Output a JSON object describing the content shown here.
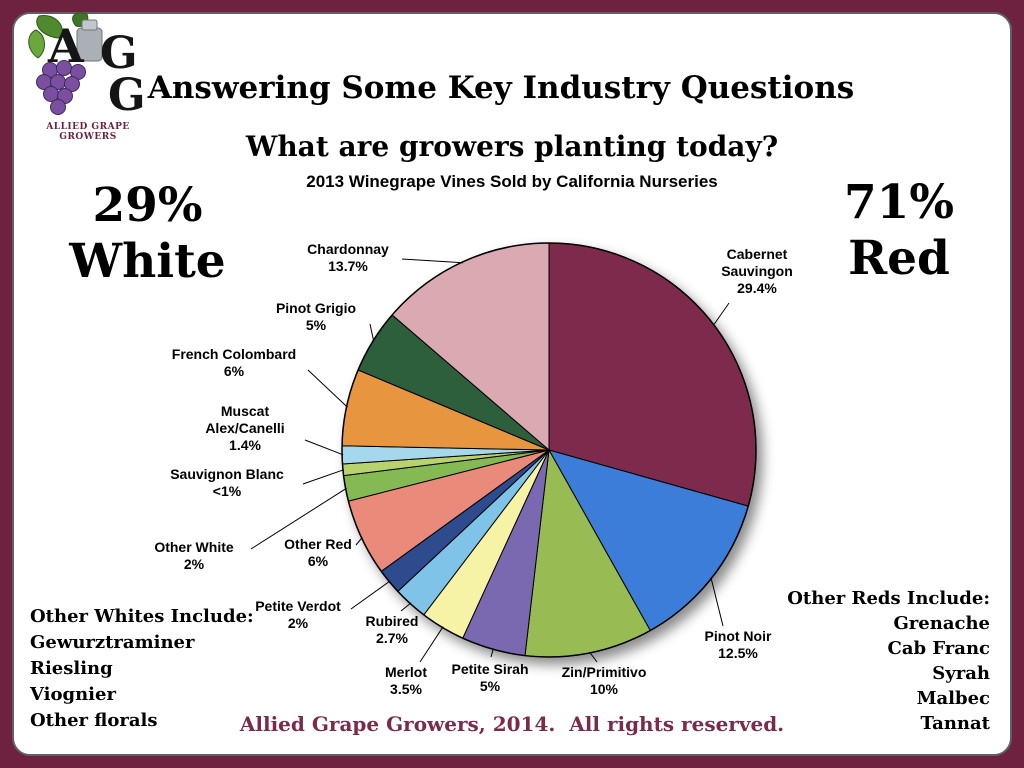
{
  "slide": {
    "title": "Answering Some Key Industry Questions",
    "subtitle": "What are growers planting today?",
    "footer": "Allied Grape Growers, 2014.  All rights reserved."
  },
  "logo": {
    "letters": [
      "A",
      "G",
      "G"
    ],
    "caption": "Allied Grape Growers"
  },
  "stats": {
    "white_pct": "29%",
    "white_label": "White",
    "red_pct": "71%",
    "red_label": "Red"
  },
  "chart_data": {
    "type": "pie",
    "title": "2013 Winegrape Vines Sold by California Nurseries",
    "start_angle_deg": 0,
    "direction": "clockwise",
    "slices": [
      {
        "label": "Cabernet Sauvingon",
        "pct_label": "29.4%",
        "value": 29.4,
        "color": "#7d2c4d"
      },
      {
        "label": "Pinot Noir",
        "pct_label": "12.5%",
        "value": 12.5,
        "color": "#3b7dd8"
      },
      {
        "label": "Zin/Primitivo",
        "pct_label": "10%",
        "value": 10,
        "color": "#98bc52"
      },
      {
        "label": "Petite Sirah",
        "pct_label": "5%",
        "value": 5,
        "color": "#7a68b0"
      },
      {
        "label": "Merlot",
        "pct_label": "3.5%",
        "value": 3.5,
        "color": "#f6f3a7"
      },
      {
        "label": "Rubired",
        "pct_label": "2.7%",
        "value": 2.7,
        "color": "#7fc4e8"
      },
      {
        "label": "Petite Verdot",
        "pct_label": "2%",
        "value": 2,
        "color": "#2e4c8e"
      },
      {
        "label": "Other Red",
        "pct_label": "6%",
        "value": 6,
        "color": "#e98a7a"
      },
      {
        "label": "Other White",
        "pct_label": "2%",
        "value": 2,
        "color": "#85b952"
      },
      {
        "label": "Sauvignon Blanc",
        "pct_label": "<1%",
        "value": 0.9,
        "color": "#b8d36e"
      },
      {
        "label": "Muscat Alex/Canelli",
        "pct_label": "1.4%",
        "value": 1.4,
        "color": "#a5d8ec"
      },
      {
        "label": "French Colombard",
        "pct_label": "6%",
        "value": 6,
        "color": "#e8953f"
      },
      {
        "label": "Pinot Grigio",
        "pct_label": "5%",
        "value": 5,
        "color": "#2e5f3d"
      },
      {
        "label": "Chardonnay",
        "pct_label": "13.7%",
        "value": 13.7,
        "color": "#dba9b1"
      }
    ]
  },
  "other_whites": {
    "heading": "Other Whites Include:",
    "items": [
      "Gewurztraminer",
      "Riesling",
      "Viognier",
      "Other florals"
    ]
  },
  "other_reds": {
    "heading": "Other Reds Include:",
    "items": [
      "Grenache",
      "Cab Franc",
      "Syrah",
      "Malbec",
      "Tannat"
    ]
  }
}
